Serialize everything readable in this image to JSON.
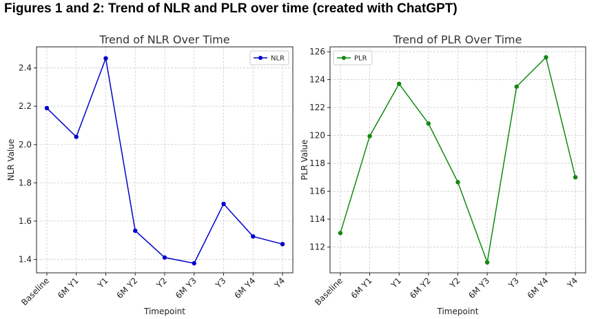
{
  "figure_title": "Figures 1 and 2: Trend of NLR and PLR over time (created with ChatGPT)",
  "chart_data": [
    {
      "type": "line",
      "title": "Trend of NLR Over Time",
      "xlabel": "Timepoint",
      "ylabel": "NLR Value",
      "categories": [
        "Baseline",
        "6M Y1",
        "Y1",
        "6M Y2",
        "Y2",
        "6M Y3",
        "Y3",
        "6M Y4",
        "Y4"
      ],
      "series": [
        {
          "name": "NLR",
          "color": "#0000cc",
          "values": [
            2.19,
            2.04,
            2.45,
            1.55,
            1.41,
            1.38,
            1.69,
            1.52,
            1.48
          ]
        }
      ],
      "ylim": [
        1.33,
        2.51
      ],
      "yticks": [
        1.4,
        1.6,
        1.8,
        2.0,
        2.2,
        2.4
      ],
      "ytick_labels": [
        "1.4",
        "1.6",
        "1.8",
        "2.0",
        "2.2",
        "2.4"
      ],
      "grid": true,
      "legend": "top-right"
    },
    {
      "type": "line",
      "title": "Trend of PLR Over Time",
      "xlabel": "Timepoint",
      "ylabel": "PLR Value",
      "categories": [
        "Baseline",
        "6M Y1",
        "Y1",
        "6M Y2",
        "Y2",
        "6M Y3",
        "Y3",
        "6M Y4",
        "Y4"
      ],
      "series": [
        {
          "name": "PLR",
          "color": "#118811",
          "values": [
            113.0,
            119.95,
            123.7,
            120.85,
            116.65,
            110.9,
            123.5,
            125.6,
            117.0
          ]
        }
      ],
      "ylim": [
        110.15,
        126.35
      ],
      "yticks": [
        112,
        114,
        116,
        118,
        120,
        122,
        124,
        126
      ],
      "ytick_labels": [
        "112",
        "114",
        "116",
        "118",
        "120",
        "122",
        "124",
        "126"
      ],
      "grid": true,
      "legend": "top-left"
    }
  ]
}
